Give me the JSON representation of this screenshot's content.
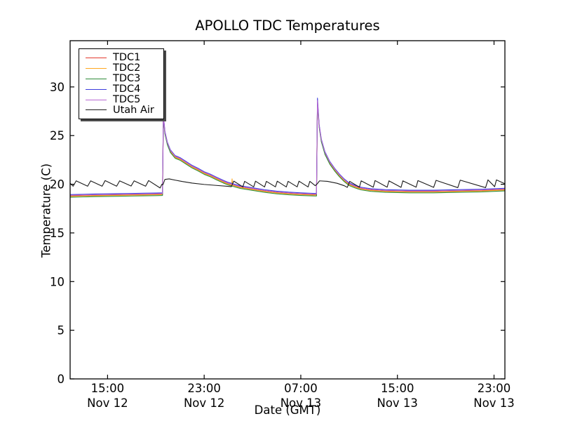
{
  "chart_data": {
    "type": "line",
    "title": "APOLLO TDC Temperatures",
    "xlabel": "Date (GMT)",
    "ylabel": "Temperature (C)",
    "grid": false,
    "legend_position": "upper left",
    "x_units": "hours since Nov 12 00:00 GMT",
    "xlim": [
      11.9,
      47.9
    ],
    "ylim": [
      0,
      34.75
    ],
    "yticks": [
      0,
      5,
      10,
      15,
      20,
      25,
      30
    ],
    "xticks": [
      {
        "t": 15,
        "time": "15:00",
        "date": "Nov 12"
      },
      {
        "t": 23,
        "time": "23:00",
        "date": "Nov 12"
      },
      {
        "t": 31,
        "time": "07:00",
        "date": "Nov 13"
      },
      {
        "t": 39,
        "time": "15:00",
        "date": "Nov 13"
      },
      {
        "t": 47,
        "time": "23:00",
        "date": "Nov 13"
      }
    ],
    "x": [
      11.9,
      13.0,
      14.0,
      15.0,
      16.0,
      17.0,
      18.0,
      19.0,
      19.55,
      19.62,
      19.75,
      19.95,
      20.2,
      20.6,
      21.0,
      21.5,
      22.0,
      22.5,
      23.0,
      23.5,
      24.0,
      24.6,
      25.0,
      25.28,
      25.31,
      25.36,
      26.0,
      26.5,
      27.0,
      28.0,
      29.0,
      30.0,
      31.0,
      32.0,
      32.3,
      32.38,
      32.52,
      32.7,
      33.0,
      33.4,
      33.8,
      34.2,
      34.6,
      35.0,
      35.5,
      36.0,
      36.8,
      38.0,
      40.0,
      42.0,
      44.0,
      46.0,
      47.9
    ],
    "series": [
      {
        "name": "TDC1",
        "color": "#e43a2e",
        "y": [
          18.8,
          18.83,
          18.86,
          18.88,
          18.9,
          18.92,
          18.94,
          18.96,
          18.98,
          27.0,
          25.3,
          24.2,
          23.4,
          22.8,
          22.6,
          22.2,
          21.8,
          21.5,
          21.15,
          20.9,
          20.6,
          20.25,
          20.05,
          19.95,
          19.94,
          19.92,
          19.7,
          19.6,
          19.5,
          19.3,
          19.15,
          19.05,
          18.98,
          18.93,
          18.92,
          28.45,
          26.0,
          24.5,
          23.2,
          22.2,
          21.5,
          20.9,
          20.4,
          20.0,
          19.75,
          19.55,
          19.4,
          19.3,
          19.25,
          19.25,
          19.3,
          19.35,
          19.45
        ]
      },
      {
        "name": "TDC2",
        "color": "#ffa81f",
        "y": [
          18.76,
          18.79,
          18.82,
          18.84,
          18.86,
          18.88,
          18.9,
          18.92,
          18.94,
          26.9,
          25.26,
          24.16,
          23.36,
          22.76,
          22.56,
          22.16,
          21.76,
          21.46,
          21.11,
          20.86,
          20.56,
          20.21,
          20.01,
          19.91,
          20.55,
          19.88,
          19.66,
          19.56,
          19.46,
          19.26,
          19.11,
          19.01,
          18.94,
          18.89,
          18.88,
          28.35,
          25.96,
          24.46,
          23.16,
          22.16,
          21.46,
          20.86,
          20.36,
          19.96,
          19.71,
          19.51,
          19.36,
          19.26,
          19.21,
          19.21,
          19.26,
          19.31,
          19.41
        ]
      },
      {
        "name": "TDC3",
        "color": "#2e8b38",
        "y": [
          18.67,
          18.7,
          18.73,
          18.75,
          18.77,
          18.79,
          18.81,
          18.83,
          18.85,
          26.8,
          25.17,
          24.07,
          23.27,
          22.67,
          22.47,
          22.07,
          21.67,
          21.37,
          21.02,
          20.77,
          20.47,
          20.12,
          19.92,
          19.82,
          19.81,
          19.79,
          19.57,
          19.47,
          19.37,
          19.17,
          19.02,
          18.92,
          18.85,
          18.8,
          18.79,
          28.3,
          25.87,
          24.37,
          23.07,
          22.07,
          21.37,
          20.77,
          20.27,
          19.87,
          19.62,
          19.42,
          19.27,
          19.17,
          19.12,
          19.12,
          19.17,
          19.22,
          19.32
        ]
      },
      {
        "name": "TDC4",
        "color": "#3c3cdc",
        "y": [
          18.94,
          18.97,
          19.0,
          19.02,
          19.04,
          19.06,
          19.08,
          19.1,
          19.12,
          27.2,
          25.44,
          24.34,
          23.54,
          22.94,
          22.74,
          22.34,
          21.94,
          21.64,
          21.29,
          21.04,
          20.74,
          20.39,
          20.19,
          20.09,
          20.08,
          20.06,
          19.84,
          19.74,
          19.64,
          19.44,
          19.29,
          19.19,
          19.12,
          19.07,
          19.06,
          28.85,
          26.14,
          24.64,
          23.34,
          22.34,
          21.64,
          21.04,
          20.54,
          20.14,
          19.89,
          19.69,
          19.54,
          19.44,
          19.39,
          19.39,
          19.44,
          19.49,
          19.59
        ]
      },
      {
        "name": "TDC5",
        "color": "#b768d2",
        "y": [
          18.87,
          18.9,
          18.93,
          18.95,
          18.97,
          18.99,
          19.01,
          19.03,
          19.05,
          27.1,
          25.37,
          24.27,
          23.47,
          22.87,
          22.67,
          22.27,
          21.87,
          21.57,
          21.22,
          20.97,
          20.67,
          20.32,
          20.12,
          20.02,
          20.01,
          19.99,
          19.77,
          19.67,
          19.57,
          19.37,
          19.22,
          19.12,
          19.05,
          19.0,
          18.99,
          28.6,
          26.07,
          24.57,
          23.27,
          22.27,
          21.57,
          20.97,
          20.47,
          20.07,
          19.82,
          19.62,
          19.47,
          19.37,
          19.32,
          19.32,
          19.37,
          19.42,
          19.52
        ]
      },
      {
        "name": "Utah Air",
        "color": "#1a1a1a",
        "x": [
          11.9,
          12.15,
          12.4,
          13.35,
          13.6,
          14.55,
          14.8,
          15.75,
          16.0,
          16.95,
          17.2,
          18.15,
          18.4,
          19.35,
          19.5,
          19.58,
          19.75,
          20.1,
          20.6,
          21.2,
          22.0,
          23.0,
          24.0,
          24.8,
          25.25,
          25.45,
          26.2,
          26.35,
          27.1,
          27.25,
          28.0,
          28.15,
          28.9,
          29.05,
          29.8,
          29.95,
          30.7,
          30.85,
          31.6,
          31.75,
          32.2,
          32.4,
          32.55,
          33.2,
          34.0,
          34.6,
          34.85,
          35.05,
          35.85,
          36.0,
          37.0,
          37.15,
          38.15,
          38.3,
          39.3,
          39.45,
          40.55,
          40.7,
          42.0,
          42.2,
          44.0,
          44.2,
          46.3,
          46.5,
          47.05,
          47.2,
          47.9
        ],
        "y": [
          20.1,
          19.8,
          20.35,
          19.8,
          20.35,
          19.8,
          20.38,
          19.8,
          20.35,
          19.82,
          20.35,
          19.8,
          20.38,
          19.62,
          20.0,
          19.95,
          20.5,
          20.55,
          20.42,
          20.28,
          20.12,
          19.98,
          19.88,
          19.8,
          19.75,
          20.32,
          19.73,
          20.3,
          19.73,
          20.32,
          19.72,
          20.3,
          19.73,
          20.32,
          19.72,
          20.3,
          19.73,
          20.32,
          19.72,
          20.3,
          19.85,
          20.1,
          20.35,
          20.3,
          20.1,
          19.85,
          19.68,
          20.3,
          19.7,
          20.35,
          19.7,
          20.38,
          19.7,
          20.35,
          19.68,
          20.35,
          19.7,
          20.38,
          19.68,
          20.4,
          19.65,
          20.42,
          19.65,
          20.45,
          19.75,
          20.45,
          20.05
        ]
      }
    ]
  }
}
